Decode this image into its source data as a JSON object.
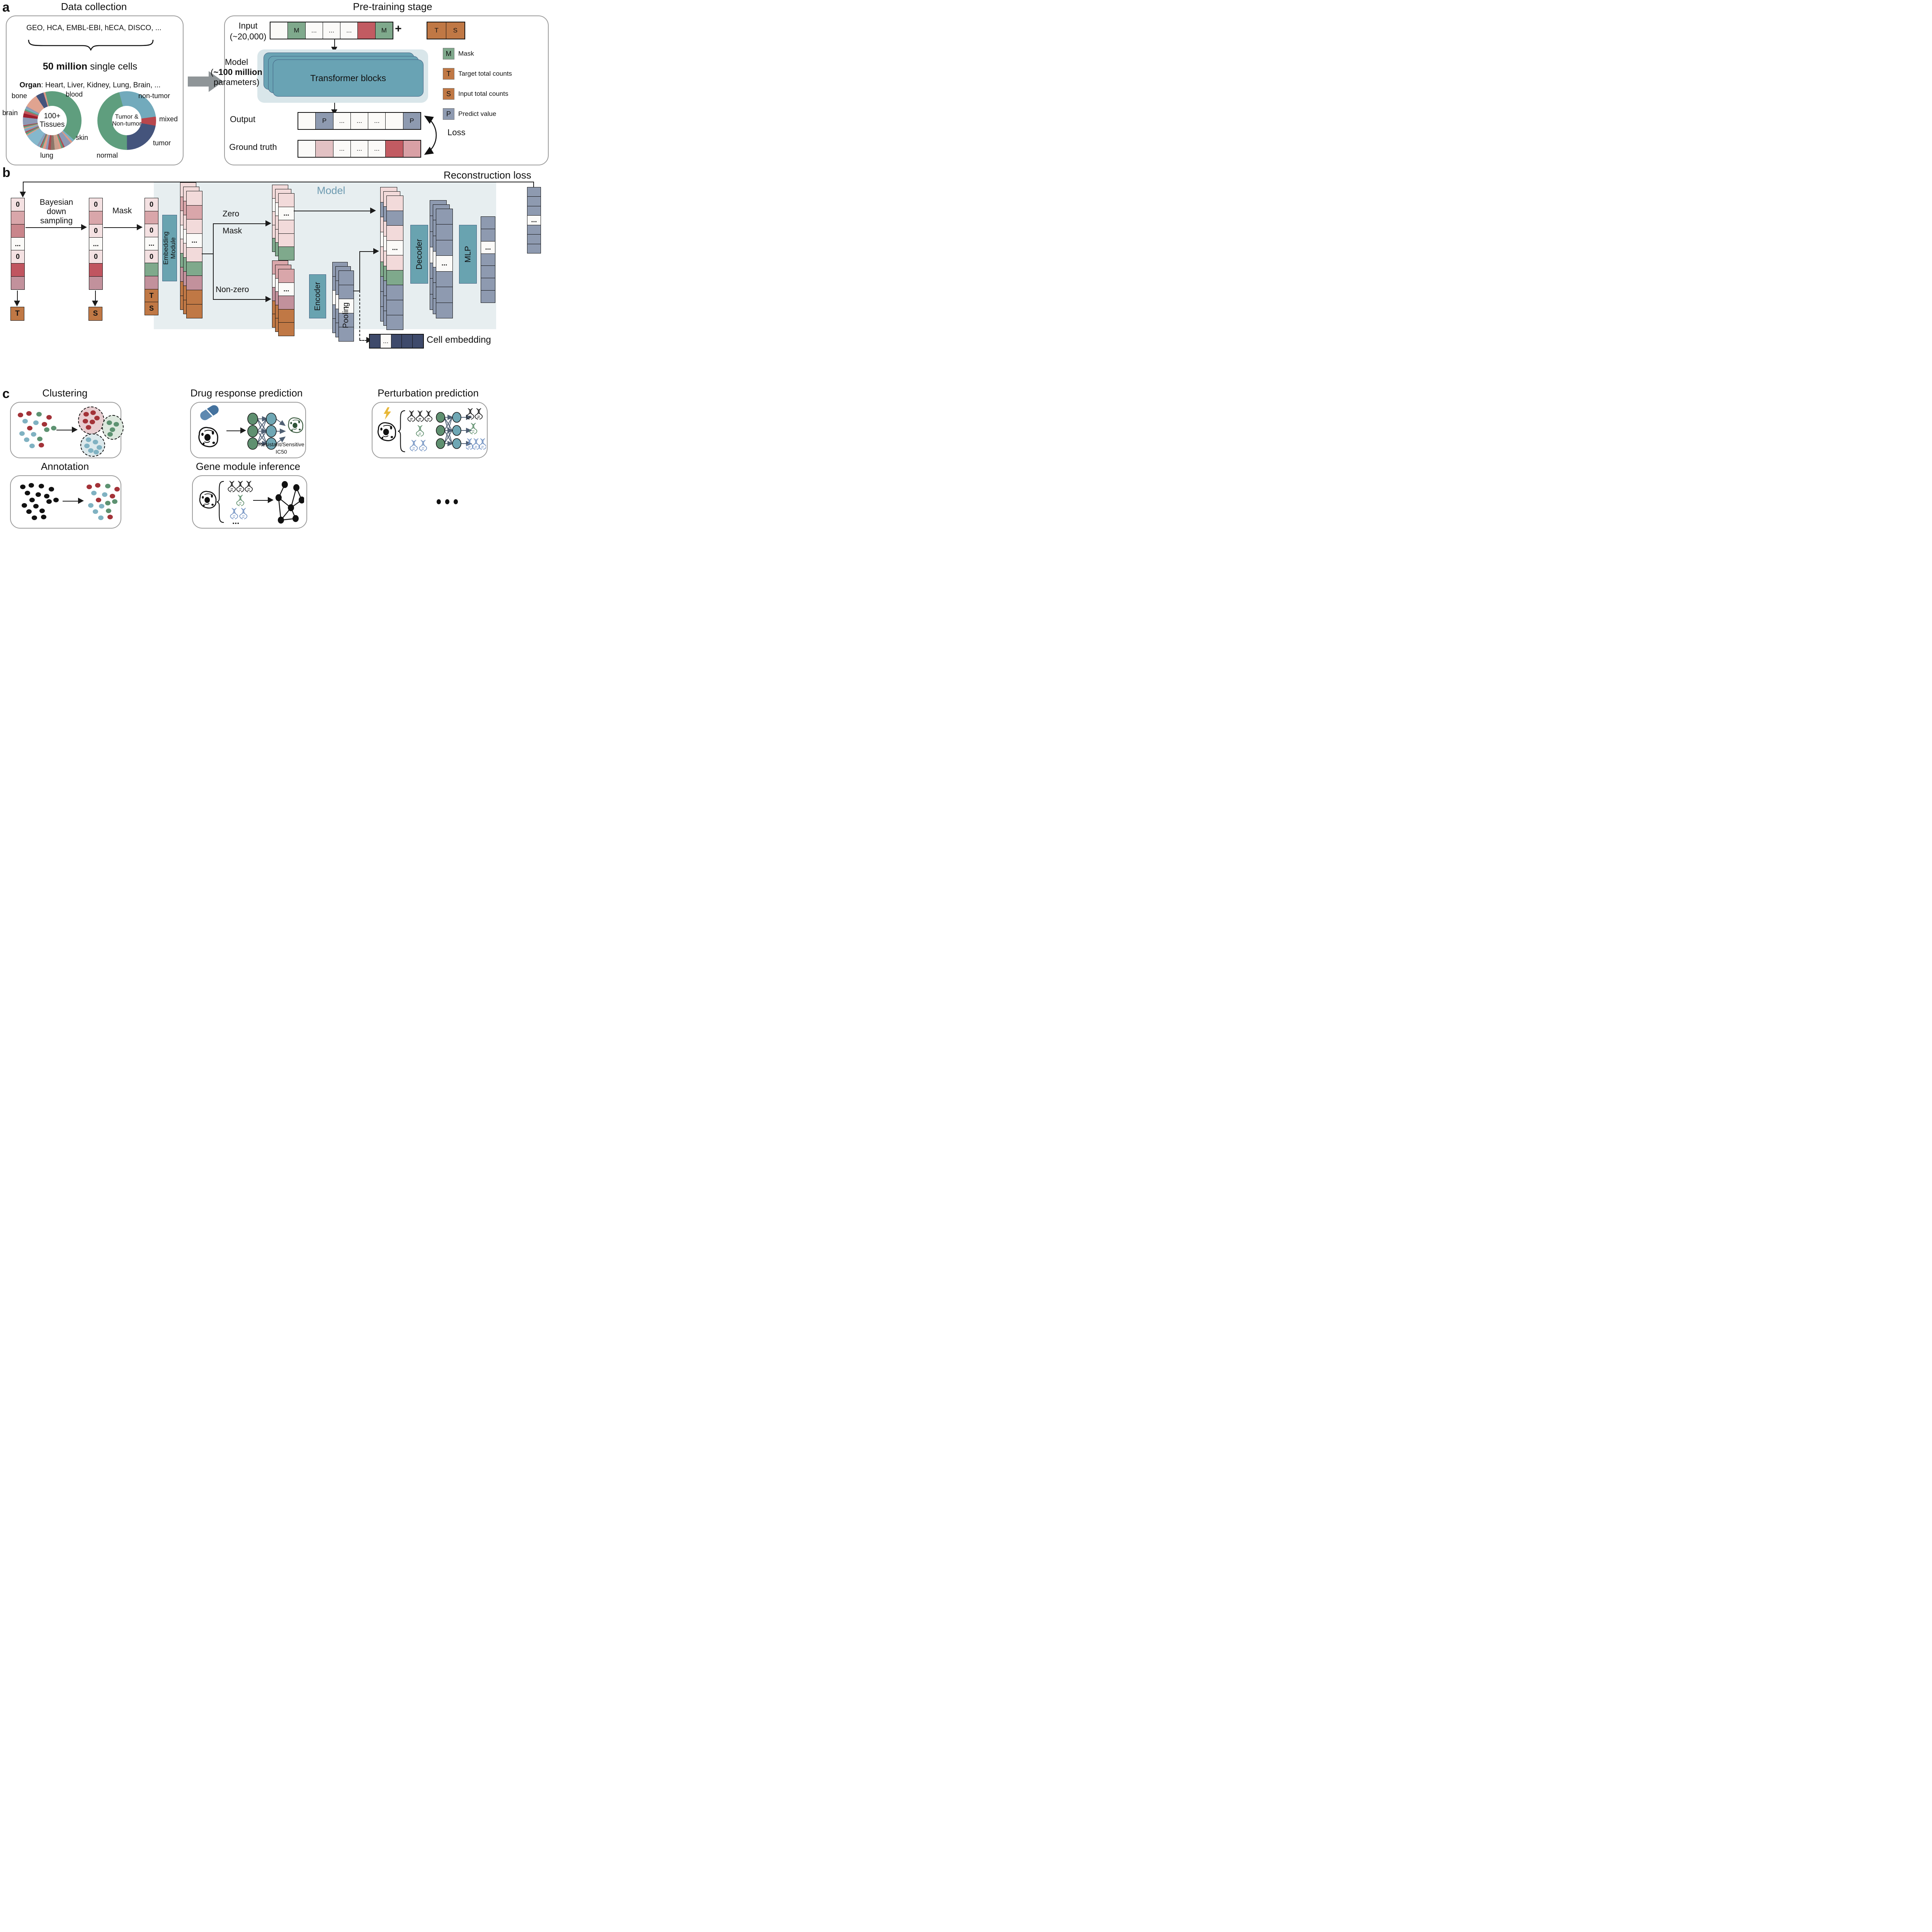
{
  "colors": {
    "wh": "#fbfaf8",
    "lp": "#f4e1e2",
    "lp2": "#f2dada",
    "pk": "#d9a6aa",
    "pk2": "#d9a0a5",
    "gp": "#e2c1c3",
    "rs": "#c9858b",
    "rd": "#c05560",
    "rd2": "#c25b62",
    "mv": "#c2919c",
    "gn": "#7fa98c",
    "or": "#c07845",
    "gy": "#8e9ab0",
    "nv": "#3e4a6b"
  },
  "panel_a": {
    "label": "a",
    "data_collection": {
      "title": "Data collection",
      "sources": "GEO, HCA, EMBL-EBI, hECA, DISCO, ...",
      "cells_bold": "50 million",
      "cells_rest": " single cells",
      "organ_bold": "Organ",
      "organ_rest": ": Heart, Liver, Kidney, Lung, Brain, ...",
      "tissues_center_1": "100+",
      "tissues_center_2": "Tissues",
      "tumor_center_1": "Tumor &",
      "tumor_center_2": "Non-tumor",
      "labels": {
        "bone": "bone",
        "blood": "blood",
        "brain": "brain",
        "skin": "skin",
        "lung": "lung",
        "non_tumor": "non-tumor",
        "mixed": "mixed",
        "tumor": "tumor",
        "normal": "normal"
      }
    },
    "pretraining": {
      "title": "Pre-training stage",
      "input_label": "Input",
      "input_sub": "(~20,000)",
      "plus": "+",
      "model_1": "Model",
      "model_2_pre": "(",
      "model_2_bold": "~100 million",
      "model_3": "parameters)",
      "transformer": "Transformer blocks",
      "output": "Output",
      "ground_truth": "Ground truth",
      "loss": "Loss",
      "legend": [
        {
          "key": "M",
          "c": "gn",
          "label": "Mask"
        },
        {
          "key": "T",
          "c": "or",
          "label": "Target total counts"
        },
        {
          "key": "S",
          "c": "or",
          "label": "Input total counts"
        },
        {
          "key": "P",
          "c": "gy",
          "label": "Predict value"
        }
      ],
      "input_cells": [
        {
          "c": "wh"
        },
        {
          "c": "gn",
          "t": "M"
        },
        {
          "c": "wh",
          "t": "..."
        },
        {
          "c": "wh",
          "t": "..."
        },
        {
          "c": "wh",
          "t": "..."
        },
        {
          "c": "rd2"
        },
        {
          "c": "gn",
          "t": "M"
        }
      ],
      "ts_cells": [
        {
          "c": "or",
          "t": "T"
        },
        {
          "c": "or",
          "t": "S"
        }
      ],
      "output_cells": [
        {
          "c": "wh"
        },
        {
          "c": "gy",
          "t": "P"
        },
        {
          "c": "wh",
          "t": "..."
        },
        {
          "c": "wh",
          "t": "..."
        },
        {
          "c": "wh",
          "t": "..."
        },
        {
          "c": "wh"
        },
        {
          "c": "gy",
          "t": "P"
        }
      ],
      "ground_truth_cells": [
        {
          "c": "wh"
        },
        {
          "c": "gp"
        },
        {
          "c": "wh",
          "t": "..."
        },
        {
          "c": "wh",
          "t": "..."
        },
        {
          "c": "wh",
          "t": "..."
        },
        {
          "c": "rd2"
        },
        {
          "c": "pk2"
        }
      ]
    }
  },
  "panel_b": {
    "label": "b",
    "reconstruction": "Reconstruction loss",
    "model": "Model",
    "bayes_1": "Bayesian",
    "bayes_2": "down",
    "bayes_3": "sampling",
    "mask": "Mask",
    "zero": "Zero",
    "mask2": "Mask",
    "nonzero": "Non-zero",
    "embedding": "Embedding\nModule",
    "encoder": "Encoder",
    "decoder": "Decoder",
    "mlp": "MLP",
    "pooling": "Pooling",
    "cell_embedding": "Cell embedding",
    "t": "T",
    "s": "S",
    "col1": [
      {
        "c": "lp",
        "t": "0"
      },
      {
        "c": "pk"
      },
      {
        "c": "rs"
      },
      {
        "c": "wh",
        "t": "..."
      },
      {
        "c": "lp",
        "t": "0"
      },
      {
        "c": "rd"
      },
      {
        "c": "mv"
      }
    ],
    "col2": [
      {
        "c": "lp",
        "t": "0"
      },
      {
        "c": "pk"
      },
      {
        "c": "lp",
        "t": "0"
      },
      {
        "c": "wh",
        "t": "..."
      },
      {
        "c": "lp",
        "t": "0"
      },
      {
        "c": "rd"
      },
      {
        "c": "mv"
      }
    ],
    "col3": [
      {
        "c": "lp",
        "t": "0"
      },
      {
        "c": "pk"
      },
      {
        "c": "lp",
        "t": "0"
      },
      {
        "c": "wh",
        "t": "..."
      },
      {
        "c": "lp",
        "t": "0"
      },
      {
        "c": "gn"
      },
      {
        "c": "mv"
      },
      {
        "c": "or",
        "t": "T"
      },
      {
        "c": "or",
        "t": "S"
      }
    ],
    "embed": [
      {
        "c": "lp2"
      },
      {
        "c": "pk"
      },
      {
        "c": "lp2"
      },
      {
        "c": "wh",
        "t": "..."
      },
      {
        "c": "lp2"
      },
      {
        "c": "gn"
      },
      {
        "c": "mv"
      },
      {
        "c": "or"
      },
      {
        "c": "or"
      }
    ],
    "zero_stack": [
      {
        "c": "lp2"
      },
      {
        "c": "wh",
        "t": "..."
      },
      {
        "c": "lp2"
      },
      {
        "c": "lp2"
      },
      {
        "c": "gn"
      }
    ],
    "nonzero_stack": [
      {
        "c": "pk"
      },
      {
        "c": "wh",
        "t": "..."
      },
      {
        "c": "mv"
      },
      {
        "c": "or"
      },
      {
        "c": "or"
      }
    ],
    "enc_out": [
      {
        "c": "gy"
      },
      {
        "c": "gy"
      },
      {
        "c": "wh",
        "t": "..."
      },
      {
        "c": "gy"
      },
      {
        "c": "gy"
      }
    ],
    "concat": [
      {
        "c": "lp2"
      },
      {
        "c": "gy"
      },
      {
        "c": "lp2"
      },
      {
        "c": "wh",
        "t": "..."
      },
      {
        "c": "lp2"
      },
      {
        "c": "gn"
      },
      {
        "c": "gy"
      },
      {
        "c": "gy"
      },
      {
        "c": "gy"
      }
    ],
    "dec_out": [
      {
        "c": "gy"
      },
      {
        "c": "gy"
      },
      {
        "c": "gy"
      },
      {
        "c": "wh",
        "t": "..."
      },
      {
        "c": "gy"
      },
      {
        "c": "gy"
      },
      {
        "c": "gy"
      }
    ],
    "mlp_out": [
      {
        "c": "gy"
      },
      {
        "c": "gy"
      },
      {
        "c": "wh",
        "t": "..."
      },
      {
        "c": "gy"
      },
      {
        "c": "gy"
      },
      {
        "c": "gy"
      },
      {
        "c": "gy"
      }
    ],
    "recon_col": [
      {
        "c": "gy"
      },
      {
        "c": "gy"
      },
      {
        "c": "gy"
      },
      {
        "c": "wh",
        "t": "..."
      },
      {
        "c": "gy"
      },
      {
        "c": "gy"
      },
      {
        "c": "gy"
      }
    ],
    "cell_embed_row": [
      {
        "c": "nv"
      },
      {
        "c": "wh",
        "t": "..."
      },
      {
        "c": "nv"
      },
      {
        "c": "nv"
      },
      {
        "c": "nv"
      }
    ]
  },
  "panel_c": {
    "label": "c",
    "clustering": {
      "title": "Clustering"
    },
    "drug": {
      "title": "Drug response prediction",
      "caption_1": "Resistant/Sensitive",
      "caption_2": "IC50"
    },
    "perturbation": {
      "title": "Perturbation prediction"
    },
    "annotation": {
      "title": "Annotation"
    },
    "gene_module": {
      "title": "Gene module inference",
      "more": "..."
    }
  },
  "chart_data": [
    {
      "type": "pie",
      "title": "100+ Tissues",
      "legend_position": "around",
      "donut": true,
      "start_deg": -10,
      "slices": [
        {
          "label": "blood",
          "color": "#5f9e7e",
          "value": 36
        },
        {
          "color": "#7ab0c4",
          "value": 1.2
        },
        {
          "color": "#de9a88",
          "value": 1.0
        },
        {
          "color": "#8d99b5",
          "value": 3.6
        },
        {
          "color": "#b04a50",
          "value": 0.8
        },
        {
          "color": "#5f9e7e",
          "value": 1.0
        },
        {
          "color": "#de9a88",
          "value": 1.2
        },
        {
          "label": "skin",
          "color": "#c9a08e",
          "value": 2.2
        },
        {
          "color": "#8a7668",
          "value": 2.0
        },
        {
          "color": "#a84a50",
          "value": 1.5
        },
        {
          "color": "#8d99b5",
          "value": 1.2
        },
        {
          "color": "#de9a88",
          "value": 1.5
        },
        {
          "color": "#5f9e7e",
          "value": 0.8
        },
        {
          "color": "#b04a50",
          "value": 0.6
        },
        {
          "color": "#7ab0c4",
          "value": 0.8
        },
        {
          "color": "#8d99b5",
          "value": 0.8
        },
        {
          "label": "lung",
          "color": "#85b8cc",
          "value": 7
        },
        {
          "color": "#de9a88",
          "value": 0.7
        },
        {
          "color": "#5f9e7e",
          "value": 0.9
        },
        {
          "color": "#b04a50",
          "value": 0.6
        },
        {
          "color": "#8d99b5",
          "value": 0.8
        },
        {
          "color": "#7ab0c4",
          "value": 0.7
        },
        {
          "color": "#de9a88",
          "value": 0.6
        },
        {
          "color": "#5f9e7e",
          "value": 0.7
        },
        {
          "color": "#a84a50",
          "value": 0.6
        },
        {
          "color": "#8d99b5",
          "value": 4.0
        },
        {
          "color": "#9b1f2e",
          "value": 2.0
        },
        {
          "color": "#c2565c",
          "value": 1.4
        },
        {
          "color": "#5f9e7e",
          "value": 0.8
        },
        {
          "color": "#7ab0c4",
          "value": 0.7
        },
        {
          "color": "#8d99b5",
          "value": 0.9
        },
        {
          "label": "brain",
          "color": "#e0a390",
          "value": 7
        },
        {
          "label": "bone",
          "color": "#44547c",
          "value": 4
        },
        {
          "color": "#de9a88",
          "value": 1.0
        },
        {
          "color": "#5f9e7e",
          "value": 0.9
        }
      ]
    },
    {
      "type": "pie",
      "title": "Tumor & Non-tumor",
      "donut": true,
      "start_deg": -15,
      "slices": [
        {
          "label": "non-tumor",
          "color": "#72aabc",
          "value": 27
        },
        {
          "label": "mixed",
          "color": "#b8474d",
          "value": 5
        },
        {
          "label": "tumor",
          "color": "#44547c",
          "value": 22
        },
        {
          "label": "normal",
          "color": "#5f9e7e",
          "value": 46
        }
      ]
    }
  ]
}
